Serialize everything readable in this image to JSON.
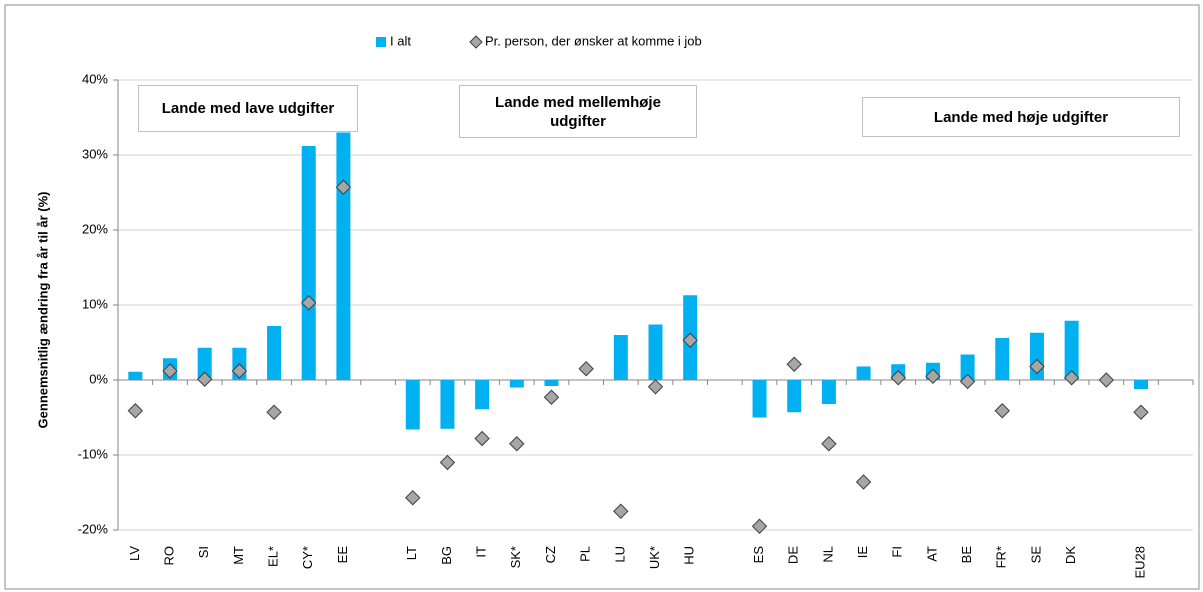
{
  "chart_data": {
    "type": "bar",
    "y_label": "Gennemsnitlig ændring fra år til år (%)",
    "categories": [
      "LV",
      "RO",
      "SI",
      "MT",
      "EL*",
      "CY*",
      "EE",
      null,
      "LT",
      "BG",
      "IT",
      "SK*",
      "CZ",
      "PL",
      "LU",
      "UK*",
      "HU",
      null,
      "ES",
      "DE",
      "NL",
      "IE",
      "FI",
      "AT",
      "BE",
      "FR*",
      "SE",
      "DK",
      null,
      "EU28",
      null
    ],
    "series": [
      {
        "name": "I alt",
        "type": "bar",
        "color": "#00b0f0",
        "values": [
          1.1,
          2.9,
          4.3,
          4.3,
          7.2,
          31.2,
          33,
          null,
          -6.6,
          -6.5,
          -3.9,
          -1.0,
          -0.8,
          null,
          6.0,
          7.4,
          11.3,
          null,
          -5.0,
          -4.3,
          -3.2,
          1.8,
          2.1,
          2.3,
          3.4,
          5.6,
          6.3,
          7.9,
          null,
          -1.2,
          null
        ]
      },
      {
        "name": "Pr. person, der ønsker at komme i job",
        "type": "scatter",
        "color": "#a6a6a6",
        "values": [
          -4.1,
          1.2,
          0.1,
          1.2,
          -4.3,
          10.3,
          25.7,
          null,
          -15.7,
          -11.0,
          -7.8,
          -8.5,
          -2.3,
          1.5,
          -17.5,
          -0.9,
          5.3,
          null,
          -19.5,
          2.1,
          -8.5,
          -13.6,
          0.3,
          0.5,
          -0.2,
          -4.1,
          1.8,
          0.3,
          0,
          -4.3,
          null
        ]
      }
    ],
    "ylim": [
      -20,
      40
    ],
    "yticks": [
      {
        "value": -20,
        "label": "-20%"
      },
      {
        "value": -10,
        "label": "-10%"
      },
      {
        "value": 0,
        "label": "0%"
      },
      {
        "value": 10,
        "label": "10%"
      },
      {
        "value": 20,
        "label": "20%"
      },
      {
        "value": 30,
        "label": "30%"
      },
      {
        "value": 40,
        "label": "40%"
      }
    ],
    "grid": true,
    "legend": "top",
    "annotations": [
      "Lande med lave udgifter",
      "Lande med mellemhøje udgifter",
      "Lande med høje udgifter"
    ]
  }
}
